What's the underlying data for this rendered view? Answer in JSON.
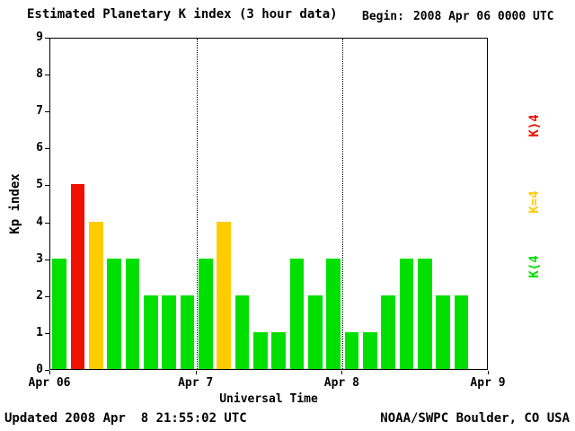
{
  "header": {
    "title": "Estimated Planetary K index (3 hour data)",
    "begin_label": "Begin:",
    "begin_value": "2008 Apr 06 0000 UTC"
  },
  "footer": {
    "updated": "Updated 2008 Apr  8 21:55:02 UTC",
    "source": "NOAA/SWPC Boulder, CO USA"
  },
  "legend": [
    {
      "label": "K⟩4",
      "color": "#ee1100"
    },
    {
      "label": "K=4",
      "color": "#ffcc00"
    },
    {
      "label": "K⟨4",
      "color": "#00e000"
    }
  ],
  "chart_data": {
    "type": "bar",
    "title": "Estimated Planetary K index (3 hour data)",
    "xlabel": "Universal Time",
    "ylabel": "Kp index",
    "ylim": [
      0,
      9
    ],
    "yticks": [
      0,
      1,
      2,
      3,
      4,
      5,
      6,
      7,
      8,
      9
    ],
    "x_day_labels": [
      "Apr 06",
      "Apr 7",
      "Apr 8",
      "Apr 9"
    ],
    "days": 3,
    "bars_per_day": 8,
    "hours_per_bar": 3,
    "values": [
      3,
      5,
      4,
      3,
      3,
      2,
      2,
      2,
      3,
      4,
      2,
      1,
      1,
      3,
      2,
      3,
      1,
      1,
      2,
      3,
      3,
      2,
      2
    ],
    "colors": {
      "below_4": "#00e000",
      "equal_4": "#ffcc00",
      "above_4": "#ee1100"
    },
    "grid": "dotted vertical lines at day boundaries",
    "legend_position": "right"
  }
}
